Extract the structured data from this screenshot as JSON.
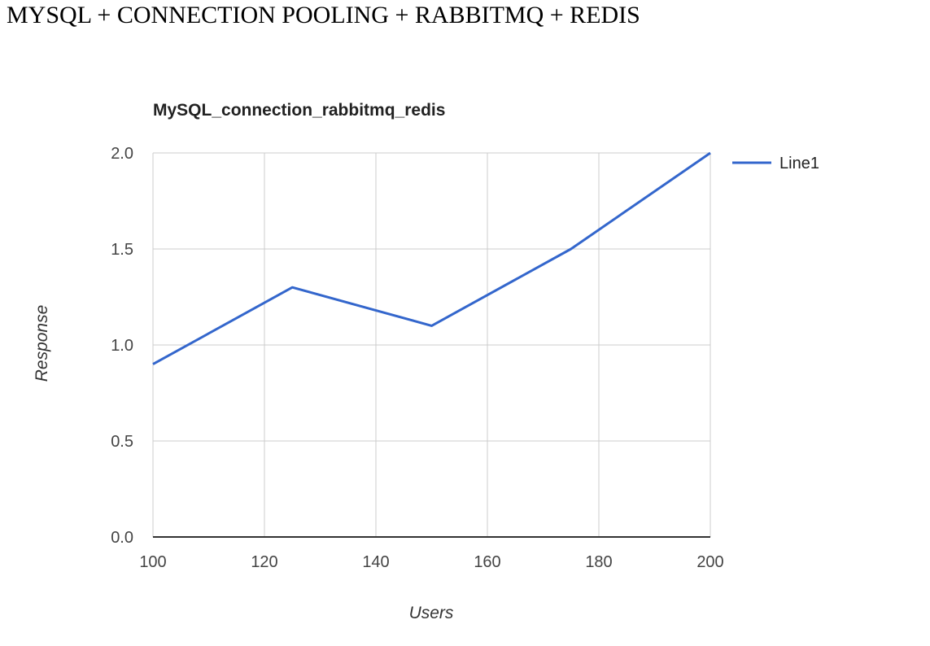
{
  "page": {
    "heading": "MYSQL + CONNECTION POOLING + RABBITMQ + REDIS"
  },
  "chart_data": {
    "type": "line",
    "title": "MySQL_connection_rabbitmq_redis",
    "xlabel": "Users",
    "ylabel": "Response",
    "x": [
      100,
      125,
      150,
      175,
      200
    ],
    "series": [
      {
        "name": "Line1",
        "values": [
          0.9,
          1.3,
          1.1,
          1.5,
          2.0
        ]
      }
    ],
    "xlim": [
      100,
      200
    ],
    "ylim": [
      0,
      2.0
    ],
    "xticks": [
      "100",
      "120",
      "140",
      "160",
      "180",
      "200"
    ],
    "yticks": [
      "0.0",
      "0.5",
      "1.0",
      "1.5",
      "2.0"
    ],
    "grid": true,
    "legend_position": "right",
    "colors": {
      "line1": "#3366cc",
      "grid": "#cccccc",
      "axis": "#333333"
    }
  }
}
